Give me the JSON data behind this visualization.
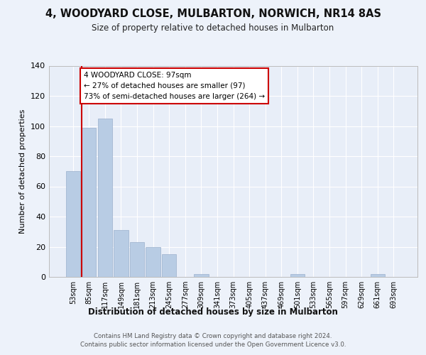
{
  "title": "4, WOODYARD CLOSE, MULBARTON, NORWICH, NR14 8AS",
  "subtitle": "Size of property relative to detached houses in Mulbarton",
  "xlabel": "Distribution of detached houses by size in Mulbarton",
  "ylabel": "Number of detached properties",
  "categories": [
    "53sqm",
    "85sqm",
    "117sqm",
    "149sqm",
    "181sqm",
    "213sqm",
    "245sqm",
    "277sqm",
    "309sqm",
    "341sqm",
    "373sqm",
    "405sqm",
    "437sqm",
    "469sqm",
    "501sqm",
    "533sqm",
    "565sqm",
    "597sqm",
    "629sqm",
    "661sqm",
    "693sqm"
  ],
  "values": [
    70,
    99,
    105,
    31,
    23,
    20,
    15,
    0,
    2,
    0,
    0,
    0,
    0,
    0,
    2,
    0,
    0,
    0,
    0,
    2,
    0
  ],
  "bar_color": "#b8cce4",
  "bar_edge_color": "#9ab0cc",
  "background_color": "#e8eef8",
  "grid_color": "#ffffff",
  "annotation_title": "4 WOODYARD CLOSE: 97sqm",
  "annotation_line1": "← 27% of detached houses are smaller (97)",
  "annotation_line2": "73% of semi-detached houses are larger (264) →",
  "annotation_box_color": "#ffffff",
  "annotation_border_color": "#cc0000",
  "property_line_color": "#cc0000",
  "ylim": [
    0,
    140
  ],
  "yticks": [
    0,
    20,
    40,
    60,
    80,
    100,
    120,
    140
  ],
  "footer_line1": "Contains HM Land Registry data © Crown copyright and database right 2024.",
  "footer_line2": "Contains public sector information licensed under the Open Government Licence v3.0.",
  "fig_bg": "#edf2fa"
}
